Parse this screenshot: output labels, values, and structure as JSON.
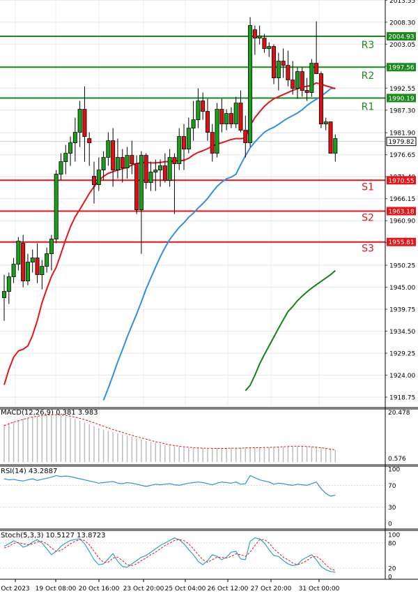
{
  "chart_data": {
    "type": "candlestick",
    "price_panel": {
      "ylim": [
        1916.6,
        2013.6
      ],
      "y_ticks": [
        2013.55,
        2008.3,
        2003.05,
        1997.8,
        1992.55,
        1987.3,
        1981.9,
        1976.65,
        1971.4,
        1966.15,
        1960.9,
        1955.65,
        1950.25,
        1945.0,
        1939.75,
        1934.5,
        1929.25,
        1924.0,
        1918.75
      ],
      "current_price": "1979.82",
      "levels": [
        {
          "name": "R3",
          "value": 2004.93,
          "label": "2004.93",
          "color": "#1b8a1b",
          "kind": "resistance"
        },
        {
          "name": "R2",
          "value": 1997.56,
          "label": "1997.56",
          "color": "#1b8a1b",
          "kind": "resistance"
        },
        {
          "name": "R1",
          "value": 1990.19,
          "label": "1990.19",
          "color": "#1b8a1b",
          "kind": "resistance"
        },
        {
          "name": "S1",
          "value": 1970.55,
          "label": "1970.55",
          "color": "#e8141a",
          "kind": "support"
        },
        {
          "name": "S2",
          "value": 1963.18,
          "label": "1963.18",
          "color": "#e8141a",
          "kind": "support"
        },
        {
          "name": "S3",
          "value": 1955.81,
          "label": "1955.81",
          "color": "#e8141a",
          "kind": "support"
        }
      ],
      "candles": [
        [
          1942.5,
          1948.0,
          1937.0,
          1944.0
        ],
        [
          1944.0,
          1948.5,
          1941.0,
          1947.5
        ],
        [
          1947.5,
          1952.0,
          1946.0,
          1950.5
        ],
        [
          1950.5,
          1957.0,
          1949.0,
          1956.0
        ],
        [
          1955.5,
          1957.5,
          1945.0,
          1946.5
        ],
        [
          1946.5,
          1953.0,
          1945.5,
          1951.0
        ],
        [
          1951.0,
          1954.0,
          1948.5,
          1952.0
        ],
        [
          1952.0,
          1955.5,
          1946.0,
          1948.0
        ],
        [
          1948.0,
          1951.5,
          1944.5,
          1950.0
        ],
        [
          1950.0,
          1954.5,
          1948.5,
          1953.0
        ],
        [
          1953.0,
          1957.5,
          1949.0,
          1956.5
        ],
        [
          1956.5,
          1973.0,
          1955.5,
          1972.0
        ],
        [
          1972.0,
          1977.0,
          1970.5,
          1975.0
        ],
        [
          1975.0,
          1979.0,
          1972.0,
          1977.0
        ],
        [
          1977.0,
          1981.0,
          1974.0,
          1979.5
        ],
        [
          1979.5,
          1985.5,
          1975.0,
          1982.0
        ],
        [
          1982.0,
          1989.5,
          1978.5,
          1987.5
        ],
        [
          1987.5,
          1993.0,
          1975.0,
          1981.0
        ],
        [
          1980.5,
          1982.0,
          1974.0,
          1979.5
        ],
        [
          1971.5,
          1975.0,
          1965.0,
          1969.5
        ],
        [
          1969.5,
          1976.0,
          1968.0,
          1973.0
        ],
        [
          1973.0,
          1977.5,
          1970.5,
          1976.0
        ],
        [
          1976.0,
          1982.0,
          1974.0,
          1980.0
        ],
        [
          1980.0,
          1983.0,
          1969.0,
          1973.0
        ],
        [
          1973.0,
          1980.5,
          1971.0,
          1976.0
        ],
        [
          1976.0,
          1978.0,
          1970.0,
          1973.5
        ],
        [
          1973.5,
          1978.5,
          1971.0,
          1976.5
        ],
        [
          1976.5,
          1980.0,
          1972.0,
          1974.5
        ],
        [
          1974.5,
          1976.5,
          1962.5,
          1963.5
        ],
        [
          1963.5,
          1977.5,
          1953.0,
          1976.5
        ],
        [
          1976.5,
          1977.0,
          1968.5,
          1970.0
        ],
        [
          1970.0,
          1975.0,
          1968.0,
          1972.5
        ],
        [
          1972.5,
          1975.5,
          1968.0,
          1973.0
        ],
        [
          1973.0,
          1975.5,
          1969.0,
          1974.0
        ],
        [
          1974.0,
          1977.0,
          1970.0,
          1970.5
        ],
        [
          1970.5,
          1978.0,
          1969.0,
          1976.0
        ],
        [
          1976.0,
          1977.0,
          1962.5,
          1974.5
        ],
        [
          1974.5,
          1983.0,
          1973.0,
          1981.0
        ],
        [
          1981.0,
          1984.0,
          1973.0,
          1978.0
        ],
        [
          1978.0,
          1985.5,
          1977.0,
          1983.0
        ],
        [
          1983.0,
          1989.5,
          1980.0,
          1985.0
        ],
        [
          1985.0,
          1992.5,
          1983.0,
          1989.5
        ],
        [
          1989.5,
          1991.5,
          1985.0,
          1987.0
        ],
        [
          1987.0,
          1990.0,
          1980.0,
          1982.0
        ],
        [
          1982.0,
          1984.0,
          1975.0,
          1977.0
        ],
        [
          1977.0,
          1989.0,
          1976.0,
          1987.5
        ],
        [
          1987.5,
          1990.0,
          1982.0,
          1984.0
        ],
        [
          1984.0,
          1987.5,
          1982.5,
          1986.5
        ],
        [
          1986.5,
          1988.0,
          1983.0,
          1984.0
        ],
        [
          1984.0,
          1990.5,
          1983.0,
          1989.0
        ],
        [
          1989.0,
          1992.0,
          1982.0,
          1982.5
        ],
        [
          1982.5,
          1986.0,
          1976.0,
          1979.5
        ],
        [
          1979.5,
          2009.5,
          1978.5,
          2007.5
        ],
        [
          2006.5,
          2007.5,
          2000.5,
          2004.5
        ],
        [
          2004.5,
          2007.5,
          2003.0,
          2005.0
        ],
        [
          2004.5,
          2005.5,
          2001.0,
          2002.0
        ],
        [
          2002.0,
          2003.5,
          2000.0,
          2002.5
        ],
        [
          2002.5,
          2003.0,
          1993.5,
          1995.0
        ],
        [
          1995.0,
          2001.0,
          1992.0,
          1999.0
        ],
        [
          1999.0,
          2002.0,
          1995.0,
          1998.0
        ],
        [
          1998.0,
          2001.5,
          1993.0,
          1994.5
        ],
        [
          1994.5,
          1999.0,
          1991.0,
          1992.5
        ],
        [
          1992.5,
          1997.5,
          1990.0,
          1996.5
        ],
        [
          1996.5,
          1997.5,
          1990.5,
          1992.0
        ],
        [
          1992.0,
          1995.0,
          1989.5,
          1991.5
        ],
        [
          1991.5,
          1999.5,
          1990.5,
          1998.5
        ],
        [
          1998.5,
          2008.5,
          1996.0,
          1996.0
        ],
        [
          1996.0,
          1996.5,
          1983.0,
          1984.0
        ],
        [
          1984.0,
          1985.5,
          1982.5,
          1984.5
        ],
        [
          1984.5,
          1984.5,
          1977.0,
          1977.0
        ],
        [
          1977.0,
          1981.5,
          1975.0,
          1980.5
        ]
      ],
      "ma_short": [
        1921.7,
        1925.4,
        1928.3,
        1929.8,
        1930.2,
        1931.0,
        1933.5,
        1937.0,
        1941.3,
        1944.6,
        1947.6,
        1949.8,
        1953.0,
        1956.4,
        1959.4,
        1961.8,
        1963.6,
        1965.5,
        1967.4,
        1969.0,
        1970.5,
        1971.5,
        1972.2,
        1972.6,
        1973.0,
        1973.3,
        1973.6,
        1974.2,
        1974.5,
        1974.8,
        1974.8,
        1974.7,
        1974.7,
        1974.8,
        1975.0,
        1975.0,
        1975.2,
        1975.2,
        1975.3,
        1975.8,
        1976.6,
        1977.2,
        1977.6,
        1978.1,
        1978.7,
        1979.2,
        1979.5,
        1979.9,
        1980.3,
        1980.5,
        1980.5,
        1980.6,
        1983.6,
        1985.5,
        1986.9,
        1988.2,
        1989.2,
        1990.0,
        1990.5,
        1991.0,
        1991.5,
        1992.0,
        1992.4,
        1992.8,
        1993.0,
        1993.2,
        1993.8,
        1993.5,
        1993.1,
        1992.8,
        1992.4
      ],
      "ma_mid": [
        null,
        null,
        null,
        null,
        null,
        null,
        null,
        null,
        null,
        null,
        null,
        null,
        null,
        null,
        null,
        null,
        null,
        null,
        null,
        null,
        null,
        1918.0,
        1920.9,
        1924.0,
        1927.2,
        1930.1,
        1933.1,
        1935.9,
        1938.6,
        1941.5,
        1944.6,
        1947.2,
        1949.8,
        1952.3,
        1954.5,
        1956.4,
        1957.9,
        1959.3,
        1960.4,
        1961.7,
        1962.7,
        1963.9,
        1965.0,
        1966.2,
        1967.7,
        1969.1,
        1970.1,
        1970.9,
        1971.3,
        1972.0,
        1974.3,
        1976.4,
        1978.3,
        1979.7,
        1980.9,
        1982.0,
        1982.7,
        1983.2,
        1983.9,
        1984.7,
        1985.4,
        1986.0,
        1986.6,
        1987.4,
        1988.4,
        1989.2,
        1989.9,
        1990.6,
        1991.5,
        1992.4,
        1992.6
      ],
      "ma_long": [
        null,
        null,
        null,
        null,
        null,
        null,
        null,
        null,
        null,
        null,
        null,
        null,
        null,
        null,
        null,
        null,
        null,
        null,
        null,
        null,
        null,
        null,
        null,
        null,
        null,
        null,
        null,
        null,
        null,
        null,
        null,
        null,
        null,
        null,
        null,
        null,
        null,
        null,
        null,
        null,
        null,
        null,
        null,
        null,
        null,
        null,
        null,
        null,
        null,
        null,
        null,
        1920.3,
        1921.6,
        1924.0,
        1926.7,
        1928.9,
        1931.0,
        1933.1,
        1935.2,
        1937.2,
        1939.2,
        1940.4,
        1941.8,
        1942.9,
        1943.9,
        1944.8,
        1945.6,
        1946.4,
        1947.2,
        1948.0,
        1949.0
      ],
      "series": [
        {
          "name": "MA short",
          "color": "#e8141a"
        },
        {
          "name": "MA mid",
          "color": "#2e8fe8"
        },
        {
          "name": "MA long",
          "color": "#138413"
        }
      ]
    },
    "macd_panel": {
      "label": "MACD(12,26,9) 0.381 3.983",
      "y_ticks": [
        "20.478",
        "0.576"
      ],
      "ylim": [
        0,
        20.478
      ],
      "histogram": [
        15.8,
        16.5,
        17.0,
        17.6,
        18.1,
        18.6,
        18.9,
        19.2,
        19.4,
        19.5,
        19.6,
        19.6,
        19.4,
        19.0,
        18.6,
        18.0,
        17.3,
        16.5,
        15.8,
        15.0,
        14.2,
        13.6,
        13.0,
        12.5,
        12.0,
        11.6,
        11.1,
        10.5,
        9.9,
        9.3,
        8.8,
        8.4,
        8.0,
        7.6,
        7.2,
        6.8,
        6.6,
        6.4,
        6.2,
        6.0,
        5.9,
        5.8,
        5.8,
        5.8,
        5.9,
        5.9,
        5.9,
        5.9,
        6.0,
        6.0,
        6.0,
        6.1,
        6.1,
        6.1,
        6.2,
        6.2,
        6.2,
        6.3,
        6.3,
        6.3,
        6.4,
        6.4,
        6.5,
        6.5,
        6.5,
        6.4,
        6.3,
        6.0,
        5.7,
        5.4,
        5.0
      ],
      "signal": [
        15.2,
        16.0,
        16.7,
        17.3,
        17.9,
        18.4,
        18.9,
        19.2,
        19.5,
        19.7,
        19.8,
        19.8,
        19.7,
        19.5,
        19.2,
        18.8,
        18.3,
        17.8,
        17.1,
        16.4,
        15.7,
        15.0,
        14.3,
        13.6,
        13.0,
        12.4,
        11.8,
        11.2,
        10.6,
        10.1,
        9.6,
        9.0,
        8.5,
        8.1,
        7.6,
        7.2,
        6.9,
        6.6,
        6.4,
        6.2,
        6.0,
        5.9,
        5.8,
        5.8,
        5.7,
        5.7,
        5.7,
        5.7,
        5.8,
        5.8,
        5.8,
        5.9,
        5.9,
        6.0,
        6.0,
        6.1,
        6.1,
        6.2,
        6.3,
        6.4,
        6.5,
        6.6,
        6.6,
        6.6,
        6.5,
        6.4,
        6.2,
        6.0,
        5.7,
        5.4,
        5.1
      ]
    },
    "rsi_panel": {
      "label": "RSI(14) 43.2887",
      "y_ticks": [
        "100",
        "70",
        "30",
        "0"
      ],
      "ylim": [
        0,
        100
      ],
      "values": [
        82,
        80,
        81,
        79,
        78,
        80,
        82,
        79,
        81,
        83,
        85,
        88,
        86,
        87,
        86,
        84,
        82,
        80,
        78,
        76,
        74,
        75,
        76,
        77,
        74,
        73,
        75,
        74,
        72,
        70,
        68,
        70,
        72,
        71,
        72,
        73,
        71,
        70,
        72,
        74,
        75,
        76,
        75,
        73,
        71,
        74,
        76,
        75,
        74,
        76,
        72,
        73,
        88,
        84,
        80,
        78,
        76,
        72,
        74,
        73,
        71,
        70,
        72,
        71,
        70,
        73,
        76,
        64,
        55,
        50,
        52
      ]
    },
    "stoch_panel": {
      "label": "Stoch(5,3,3) 10.5127 13.8723",
      "y_ticks": [
        "100",
        "80",
        "20",
        "0"
      ],
      "ylim": [
        0,
        100
      ],
      "k": [
        72,
        78,
        85,
        80,
        70,
        74,
        82,
        88,
        80,
        66,
        52,
        60,
        72,
        80,
        86,
        88,
        90,
        78,
        60,
        40,
        28,
        30,
        42,
        55,
        36,
        24,
        22,
        30,
        38,
        46,
        50,
        58,
        66,
        74,
        80,
        86,
        92,
        88,
        78,
        64,
        52,
        36,
        28,
        38,
        52,
        48,
        40,
        46,
        58,
        60,
        42,
        40,
        84,
        92,
        90,
        80,
        64,
        50,
        48,
        38,
        30,
        26,
        28,
        40,
        46,
        52,
        40,
        24,
        16,
        12,
        10
      ],
      "d": [
        68,
        72,
        79,
        81,
        78,
        76,
        78,
        82,
        84,
        78,
        68,
        60,
        62,
        70,
        78,
        84,
        88,
        86,
        76,
        60,
        44,
        34,
        34,
        44,
        46,
        38,
        28,
        26,
        30,
        38,
        44,
        52,
        58,
        66,
        74,
        80,
        86,
        88,
        86,
        78,
        66,
        52,
        40,
        34,
        40,
        46,
        46,
        44,
        48,
        54,
        52,
        48,
        58,
        74,
        88,
        88,
        80,
        66,
        56,
        46,
        40,
        32,
        28,
        32,
        38,
        46,
        48,
        40,
        28,
        18,
        14
      ]
    },
    "x_labels": [
      "Oct 2023",
      "19 Oct 08:00",
      "20 Oct 16:00",
      "23 Oct 20:00",
      "25 Oct 04:00",
      "26 Oct 12:00",
      "27 Oct 20:00",
      "31 Oct 00:00"
    ]
  }
}
